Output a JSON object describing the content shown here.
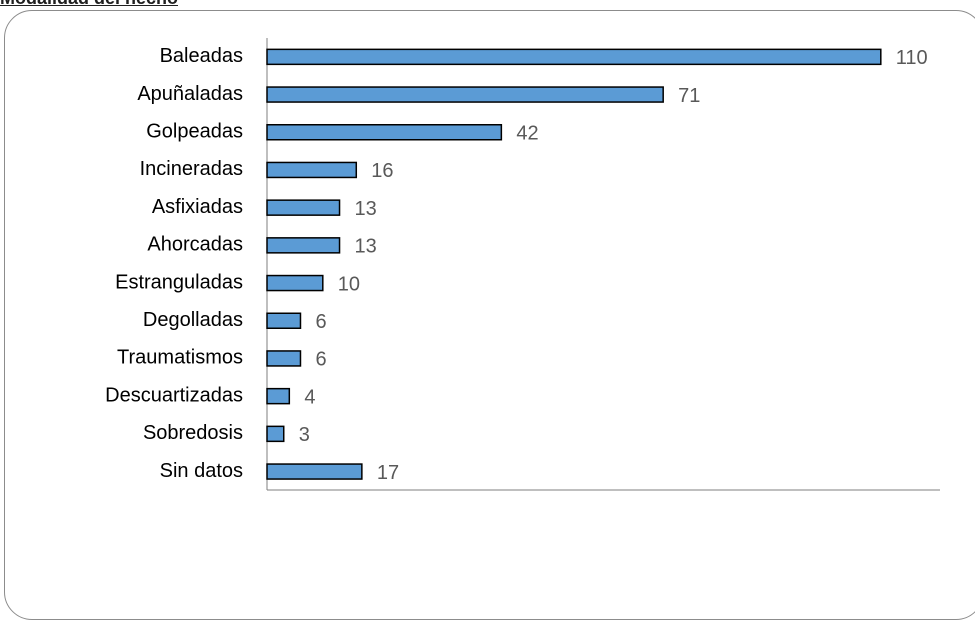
{
  "heading": "Modalidad del hecho",
  "chart_data": {
    "type": "bar",
    "orientation": "horizontal",
    "categories": [
      "Baleadas",
      "Apuñaladas",
      "Golpeadas",
      "Incineradas",
      "Asfixiadas",
      "Ahorcadas",
      "Estranguladas",
      "Degolladas",
      "Traumatismos",
      "Descuartizadas",
      "Sobredosis",
      "Sin datos"
    ],
    "values": [
      110,
      71,
      42,
      16,
      13,
      13,
      10,
      6,
      6,
      4,
      3,
      17
    ],
    "xlim": [
      0,
      120
    ],
    "bar_color": "#5b9bd5",
    "bar_border_color": "#000000",
    "data_labels": true,
    "grid": false,
    "legend": "none"
  }
}
